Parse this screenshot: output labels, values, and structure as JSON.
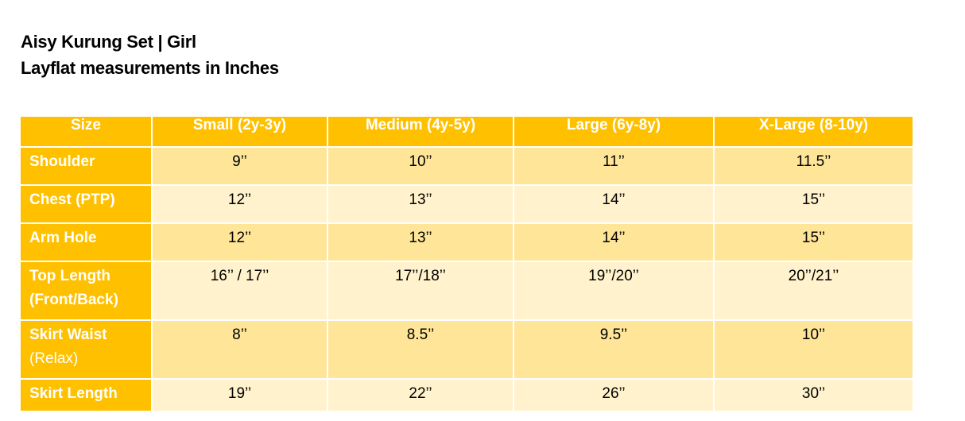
{
  "heading": {
    "title": "Aisy Kurung Set | Girl",
    "subtitle": "Layflat measurements in Inches"
  },
  "colors": {
    "header_bg": "#ffc000",
    "header_text": "#ffffff",
    "band_dark": "#ffe598",
    "band_light": "#fff2cc"
  },
  "table": {
    "columns": [
      "Size",
      "Small (2y-3y)",
      "Medium (4y-5y)",
      "Large (6y-8y)",
      "X-Large (8-10y)"
    ],
    "rows": [
      {
        "label": "Shoulder",
        "values": [
          "9’’",
          "10’’",
          "11’’",
          "11.5’’"
        ]
      },
      {
        "label": "Chest (PTP)",
        "values": [
          "12’’",
          "13’’",
          "14’’",
          "15’’"
        ]
      },
      {
        "label": "Arm Hole",
        "values": [
          "12’’",
          "13’’",
          "14’’",
          "15’’"
        ]
      },
      {
        "label_lines": [
          "Top Length",
          "(Front/Back)"
        ],
        "values": [
          "16’’ / 17’’",
          "17’’/18’’",
          "19’’/20’’",
          "20’’/21’’"
        ]
      },
      {
        "label_lines": [
          "Skirt Waist",
          "(Relax)"
        ],
        "values": [
          "8’’",
          "8.5’’",
          "9.5’’",
          "10’’"
        ]
      },
      {
        "label": "Skirt Length",
        "values": [
          "19’’",
          "22’’",
          "26’’",
          "30’’"
        ]
      }
    ]
  }
}
